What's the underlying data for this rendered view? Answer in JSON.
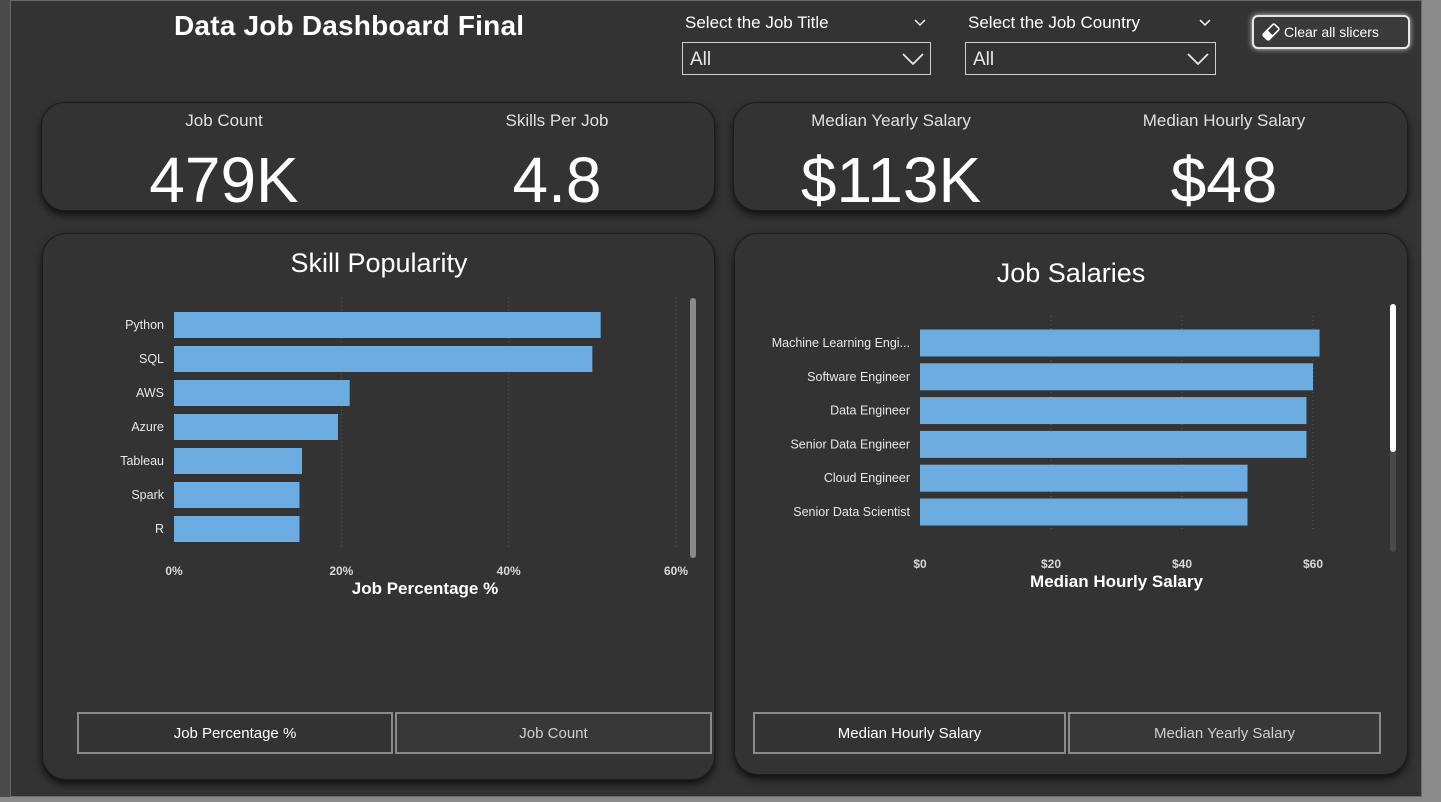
{
  "header": {
    "title": "Data Job Dashboard Final",
    "clear_label": "Clear all slicers"
  },
  "slicers": [
    {
      "label": "Select the Job Title",
      "value": "All"
    },
    {
      "label": "Select the Job Country",
      "value": "All"
    }
  ],
  "kpis_left": [
    {
      "label": "Job Count",
      "value": "479K"
    },
    {
      "label": "Skills Per Job",
      "value": "4.8"
    }
  ],
  "kpis_right": [
    {
      "label": "Median Yearly Salary",
      "value": "$113K"
    },
    {
      "label": "Median Hourly Salary",
      "value": "$48"
    }
  ],
  "skill_popularity": {
    "title": "Skill Popularity",
    "toggles": [
      "Job Percentage %",
      "Job Count"
    ],
    "active_toggle": 0
  },
  "job_salaries": {
    "title": "Job Salaries",
    "toggles": [
      "Median Hourly Salary",
      "Median Yearly Salary"
    ],
    "active_toggle": 0
  },
  "colors": {
    "bar": "#6cace0",
    "background": "#333333",
    "frame": "#8a8a8a"
  },
  "chart_data": [
    {
      "type": "bar",
      "orientation": "horizontal",
      "title": "Skill Popularity",
      "xlabel": "Job Percentage %",
      "ylabel": "",
      "categories": [
        "Python",
        "SQL",
        "AWS",
        "Azure",
        "Tableau",
        "Spark",
        "R"
      ],
      "values": [
        51,
        50,
        21,
        19.6,
        15.3,
        15,
        15
      ],
      "xlim": [
        0,
        60
      ],
      "ticks": [
        0,
        20,
        40,
        60
      ],
      "tick_labels": [
        "0%",
        "20%",
        "40%",
        "60%"
      ],
      "grid": true
    },
    {
      "type": "bar",
      "orientation": "horizontal",
      "title": "Job Salaries",
      "xlabel": "Median Hourly Salary",
      "ylabel": "",
      "categories": [
        "Machine Learning Engi...",
        "Software Engineer",
        "Data Engineer",
        "Senior Data Engineer",
        "Cloud Engineer",
        "Senior Data Scientist"
      ],
      "values": [
        61,
        60,
        59,
        59,
        50,
        50
      ],
      "xlim": [
        0,
        60
      ],
      "ticks": [
        0,
        20,
        40,
        60
      ],
      "tick_labels": [
        "$0",
        "$20",
        "$40",
        "$60"
      ],
      "grid": true
    }
  ]
}
